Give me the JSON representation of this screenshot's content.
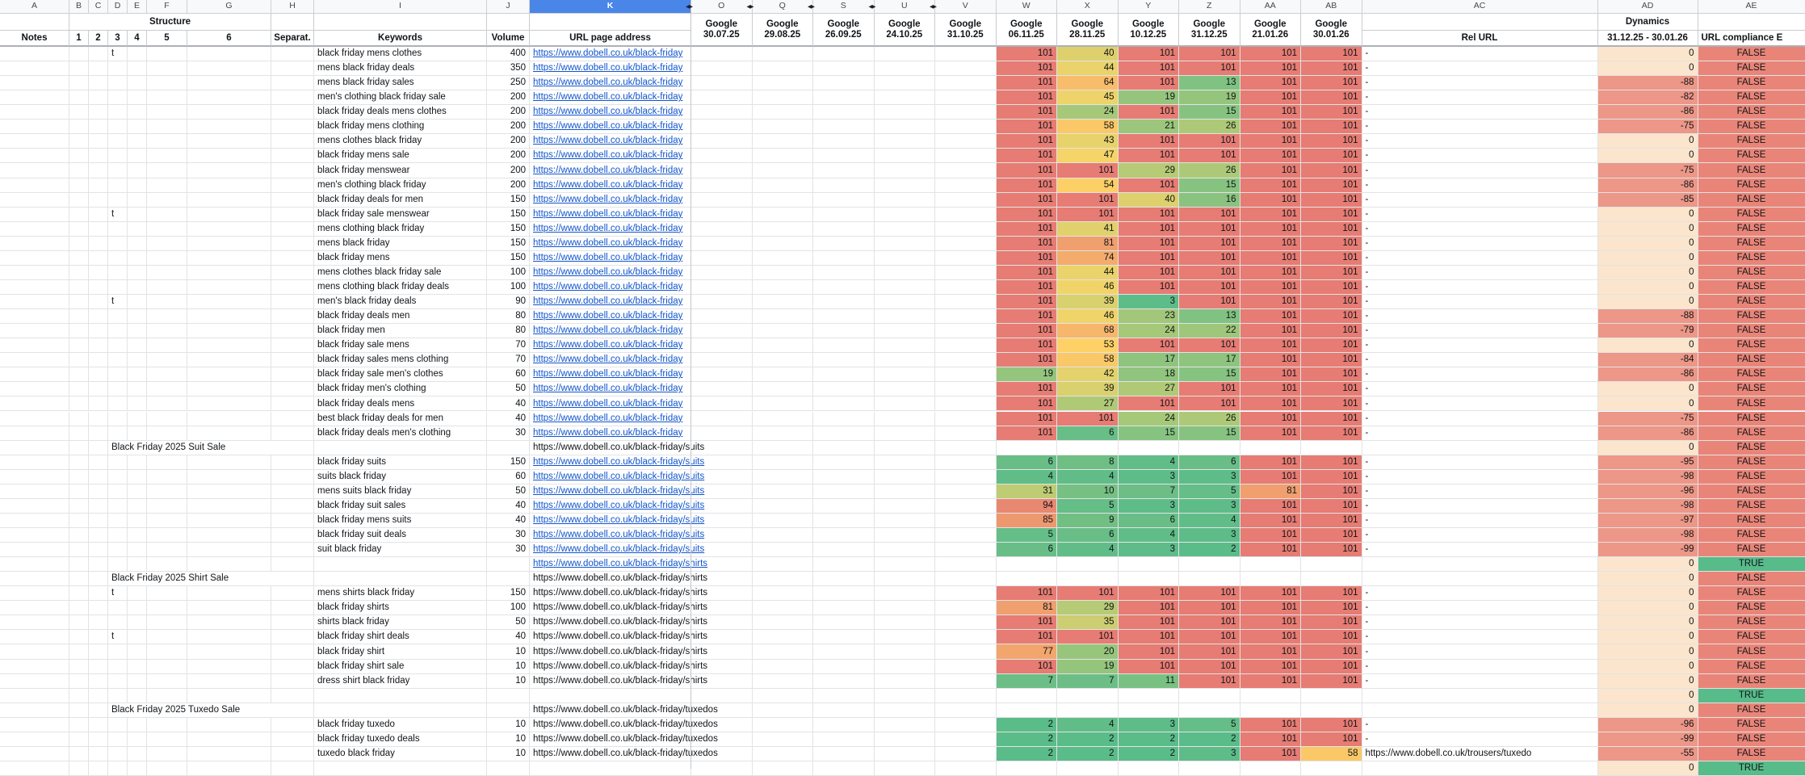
{
  "columns": {
    "letters": [
      "A",
      "B",
      "C",
      "D",
      "E",
      "F",
      "G",
      "H",
      "I",
      "J",
      "K",
      "O",
      "Q",
      "S",
      "U",
      "V",
      "W",
      "X",
      "Y",
      "Z",
      "AA",
      "AB",
      "AC",
      "AD",
      "AE"
    ],
    "selected_letter": "K",
    "hidden_boundary_letters": [
      "O",
      "Q",
      "S",
      "U",
      "V"
    ]
  },
  "headers": {
    "structure_group": "Structure",
    "dynamics_group": "Dynamics",
    "google_label": "Google",
    "notes": "Notes",
    "structure_levels": [
      "1",
      "2",
      "3",
      "4",
      "5",
      "6"
    ],
    "separator": "Separat.",
    "keywords": "Keywords",
    "volume": "Volume",
    "url": "URL page address",
    "rel_url": "Rel URL",
    "dynamics_range": "31.12.25 - 30.01.26",
    "compliance": "URL compliance E",
    "dates": [
      "30.07.25",
      "29.08.25",
      "26.09.25",
      "24.10.25",
      "31.10.25",
      "06.11.25",
      "28.11.25",
      "10.12.25",
      "31.12.25",
      "21.01.26",
      "30.01.26"
    ]
  },
  "colors": {
    "rank_min_green": "#57bb8a",
    "rank_mid_yellow": "#ffd666",
    "rank_max_red": "#e67c73",
    "dyn_zero_bg": "#fce5cd",
    "dyn_negative_bg": "#ec9787",
    "compliance_true_bg": "#57bb8a",
    "compliance_false_bg": "#e98578",
    "link_blue": "#1155cc",
    "selected_column_bg": "#4a86e8"
  },
  "rows": [
    {
      "t": "t",
      "section": "",
      "kw": "black friday mens clothes",
      "vol": "400",
      "url": "https://www.dobell.co.uk/black-friday",
      "link": true,
      "ranks": [
        101,
        40,
        101,
        101,
        101,
        101
      ],
      "rel": "-",
      "dyn": "0",
      "comp": "FALSE"
    },
    {
      "t": "",
      "section": "",
      "kw": "mens black friday deals",
      "vol": "350",
      "url": "https://www.dobell.co.uk/black-friday",
      "link": true,
      "ranks": [
        101,
        44,
        101,
        101,
        101,
        101
      ],
      "rel": "-",
      "dyn": "0",
      "comp": "FALSE"
    },
    {
      "t": "",
      "section": "",
      "kw": "mens black friday sales",
      "vol": "250",
      "url": "https://www.dobell.co.uk/black-friday",
      "link": true,
      "ranks": [
        101,
        64,
        101,
        13,
        101,
        101
      ],
      "rel": "-",
      "dyn": "-88",
      "comp": "FALSE"
    },
    {
      "t": "",
      "section": "",
      "kw": "men's clothing black friday sale",
      "vol": "200",
      "url": "https://www.dobell.co.uk/black-friday",
      "link": true,
      "ranks": [
        101,
        45,
        19,
        19,
        101,
        101
      ],
      "rel": "-",
      "dyn": "-82",
      "comp": "FALSE"
    },
    {
      "t": "",
      "section": "",
      "kw": "black friday deals mens clothes",
      "vol": "200",
      "url": "https://www.dobell.co.uk/black-friday",
      "link": true,
      "ranks": [
        101,
        24,
        101,
        15,
        101,
        101
      ],
      "rel": "-",
      "dyn": "-86",
      "comp": "FALSE"
    },
    {
      "t": "",
      "section": "",
      "kw": "black friday mens clothing",
      "vol": "200",
      "url": "https://www.dobell.co.uk/black-friday",
      "link": true,
      "ranks": [
        101,
        58,
        21,
        26,
        101,
        101
      ],
      "rel": "-",
      "dyn": "-75",
      "comp": "FALSE"
    },
    {
      "t": "",
      "section": "",
      "kw": "mens clothes black friday",
      "vol": "200",
      "url": "https://www.dobell.co.uk/black-friday",
      "link": true,
      "ranks": [
        101,
        43,
        101,
        101,
        101,
        101
      ],
      "rel": "-",
      "dyn": "0",
      "comp": "FALSE"
    },
    {
      "t": "",
      "section": "",
      "kw": "black friday mens sale",
      "vol": "200",
      "url": "https://www.dobell.co.uk/black-friday",
      "link": true,
      "ranks": [
        101,
        47,
        101,
        101,
        101,
        101
      ],
      "rel": "-",
      "dyn": "0",
      "comp": "FALSE"
    },
    {
      "t": "",
      "section": "",
      "kw": "black friday menswear",
      "vol": "200",
      "url": "https://www.dobell.co.uk/black-friday",
      "link": true,
      "ranks": [
        101,
        101,
        29,
        26,
        101,
        101
      ],
      "rel": "-",
      "dyn": "-75",
      "comp": "FALSE"
    },
    {
      "t": "",
      "section": "",
      "kw": "men's clothing black friday",
      "vol": "200",
      "url": "https://www.dobell.co.uk/black-friday",
      "link": true,
      "ranks": [
        101,
        54,
        101,
        15,
        101,
        101
      ],
      "rel": "-",
      "dyn": "-86",
      "comp": "FALSE"
    },
    {
      "t": "",
      "section": "",
      "kw": "black friday deals for men",
      "vol": "150",
      "url": "https://www.dobell.co.uk/black-friday",
      "link": true,
      "ranks": [
        101,
        101,
        40,
        16,
        101,
        101
      ],
      "rel": "-",
      "dyn": "-85",
      "comp": "FALSE"
    },
    {
      "t": "t",
      "section": "",
      "kw": "black friday sale menswear",
      "vol": "150",
      "url": "https://www.dobell.co.uk/black-friday",
      "link": true,
      "ranks": [
        101,
        101,
        101,
        101,
        101,
        101
      ],
      "rel": "-",
      "dyn": "0",
      "comp": "FALSE"
    },
    {
      "t": "",
      "section": "",
      "kw": "mens clothing black friday",
      "vol": "150",
      "url": "https://www.dobell.co.uk/black-friday",
      "link": true,
      "ranks": [
        101,
        41,
        101,
        101,
        101,
        101
      ],
      "rel": "-",
      "dyn": "0",
      "comp": "FALSE"
    },
    {
      "t": "",
      "section": "",
      "kw": "mens black friday",
      "vol": "150",
      "url": "https://www.dobell.co.uk/black-friday",
      "link": true,
      "ranks": [
        101,
        81,
        101,
        101,
        101,
        101
      ],
      "rel": "-",
      "dyn": "0",
      "comp": "FALSE"
    },
    {
      "t": "",
      "section": "",
      "kw": "black friday mens",
      "vol": "150",
      "url": "https://www.dobell.co.uk/black-friday",
      "link": true,
      "ranks": [
        101,
        74,
        101,
        101,
        101,
        101
      ],
      "rel": "-",
      "dyn": "0",
      "comp": "FALSE"
    },
    {
      "t": "",
      "section": "",
      "kw": "mens clothes black friday sale",
      "vol": "100",
      "url": "https://www.dobell.co.uk/black-friday",
      "link": true,
      "ranks": [
        101,
        44,
        101,
        101,
        101,
        101
      ],
      "rel": "-",
      "dyn": "0",
      "comp": "FALSE"
    },
    {
      "t": "",
      "section": "",
      "kw": "mens clothing black friday deals",
      "vol": "100",
      "url": "https://www.dobell.co.uk/black-friday",
      "link": true,
      "ranks": [
        101,
        46,
        101,
        101,
        101,
        101
      ],
      "rel": "-",
      "dyn": "0",
      "comp": "FALSE"
    },
    {
      "t": "t",
      "section": "",
      "kw": "men's black friday deals",
      "vol": "90",
      "url": "https://www.dobell.co.uk/black-friday",
      "link": true,
      "ranks": [
        101,
        39,
        3,
        101,
        101,
        101
      ],
      "rel": "-",
      "dyn": "0",
      "comp": "FALSE"
    },
    {
      "t": "",
      "section": "",
      "kw": "black friday deals men",
      "vol": "80",
      "url": "https://www.dobell.co.uk/black-friday",
      "link": true,
      "ranks": [
        101,
        46,
        23,
        13,
        101,
        101
      ],
      "rel": "-",
      "dyn": "-88",
      "comp": "FALSE"
    },
    {
      "t": "",
      "section": "",
      "kw": "black friday men",
      "vol": "80",
      "url": "https://www.dobell.co.uk/black-friday",
      "link": true,
      "ranks": [
        101,
        68,
        24,
        22,
        101,
        101
      ],
      "rel": "-",
      "dyn": "-79",
      "comp": "FALSE"
    },
    {
      "t": "",
      "section": "",
      "kw": "black friday sale mens",
      "vol": "70",
      "url": "https://www.dobell.co.uk/black-friday",
      "link": true,
      "ranks": [
        101,
        53,
        101,
        101,
        101,
        101
      ],
      "rel": "-",
      "dyn": "0",
      "comp": "FALSE"
    },
    {
      "t": "",
      "section": "",
      "kw": "black friday sales mens clothing",
      "vol": "70",
      "url": "https://www.dobell.co.uk/black-friday",
      "link": true,
      "ranks": [
        101,
        58,
        17,
        17,
        101,
        101
      ],
      "rel": "-",
      "dyn": "-84",
      "comp": "FALSE"
    },
    {
      "t": "",
      "section": "",
      "kw": "black friday sale men's clothes",
      "vol": "60",
      "url": "https://www.dobell.co.uk/black-friday",
      "link": true,
      "ranks": [
        19,
        42,
        18,
        15,
        101,
        101
      ],
      "rel": "-",
      "dyn": "-86",
      "comp": "FALSE"
    },
    {
      "t": "",
      "section": "",
      "kw": "black friday men's clothing",
      "vol": "50",
      "url": "https://www.dobell.co.uk/black-friday",
      "link": true,
      "ranks": [
        101,
        39,
        27,
        101,
        101,
        101
      ],
      "rel": "-",
      "dyn": "0",
      "comp": "FALSE"
    },
    {
      "t": "",
      "section": "",
      "kw": "black friday deals mens",
      "vol": "40",
      "url": "https://www.dobell.co.uk/black-friday",
      "link": true,
      "ranks": [
        101,
        27,
        101,
        101,
        101,
        101
      ],
      "rel": "-",
      "dyn": "0",
      "comp": "FALSE"
    },
    {
      "t": "",
      "section": "",
      "kw": "best black friday deals for men",
      "vol": "40",
      "url": "https://www.dobell.co.uk/black-friday",
      "link": true,
      "ranks": [
        101,
        101,
        24,
        26,
        101,
        101
      ],
      "rel": "-",
      "dyn": "-75",
      "comp": "FALSE"
    },
    {
      "t": "",
      "section": "",
      "kw": "black friday deals men's clothing",
      "vol": "30",
      "url": "https://www.dobell.co.uk/black-friday",
      "link": true,
      "ranks": [
        101,
        6,
        15,
        15,
        101,
        101
      ],
      "rel": "-",
      "dyn": "-86",
      "comp": "FALSE"
    },
    {
      "t": "",
      "section": "Black Friday 2025 Suit Sale",
      "kw": "",
      "vol": "",
      "url": "https://www.dobell.co.uk/black-friday/suits",
      "link": false,
      "ranks": null,
      "rel": "",
      "dyn": "0",
      "comp": "FALSE"
    },
    {
      "t": "",
      "section": "",
      "kw": "black friday suits",
      "vol": "150",
      "url": "https://www.dobell.co.uk/black-friday/suits",
      "link": true,
      "ranks": [
        6,
        8,
        4,
        6,
        101,
        101
      ],
      "rel": "-",
      "dyn": "-95",
      "comp": "FALSE"
    },
    {
      "t": "",
      "section": "",
      "kw": "suits black friday",
      "vol": "60",
      "url": "https://www.dobell.co.uk/black-friday/suits",
      "link": true,
      "ranks": [
        4,
        4,
        3,
        3,
        101,
        101
      ],
      "rel": "-",
      "dyn": "-98",
      "comp": "FALSE"
    },
    {
      "t": "",
      "section": "",
      "kw": "mens suits black friday",
      "vol": "50",
      "url": "https://www.dobell.co.uk/black-friday/suits",
      "link": true,
      "ranks": [
        31,
        10,
        7,
        5,
        81,
        101
      ],
      "rel": "-",
      "dyn": "-96",
      "comp": "FALSE"
    },
    {
      "t": "",
      "section": "",
      "kw": "black friday suit sales",
      "vol": "40",
      "url": "https://www.dobell.co.uk/black-friday/suits",
      "link": true,
      "ranks": [
        94,
        5,
        3,
        3,
        101,
        101
      ],
      "rel": "-",
      "dyn": "-98",
      "comp": "FALSE"
    },
    {
      "t": "",
      "section": "",
      "kw": "black friday mens suits",
      "vol": "40",
      "url": "https://www.dobell.co.uk/black-friday/suits",
      "link": true,
      "ranks": [
        85,
        9,
        6,
        4,
        101,
        101
      ],
      "rel": "-",
      "dyn": "-97",
      "comp": "FALSE"
    },
    {
      "t": "",
      "section": "",
      "kw": "black friday suit deals",
      "vol": "30",
      "url": "https://www.dobell.co.uk/black-friday/suits",
      "link": true,
      "ranks": [
        5,
        6,
        4,
        3,
        101,
        101
      ],
      "rel": "-",
      "dyn": "-98",
      "comp": "FALSE"
    },
    {
      "t": "",
      "section": "",
      "kw": "suit black friday",
      "vol": "30",
      "url": "https://www.dobell.co.uk/black-friday/suits",
      "link": true,
      "ranks": [
        6,
        4,
        3,
        2,
        101,
        101
      ],
      "rel": "-",
      "dyn": "-99",
      "comp": "FALSE"
    },
    {
      "t": "",
      "section": "",
      "kw": "",
      "vol": "",
      "url": "https://www.dobell.co.uk/black-friday/shirts",
      "link": true,
      "ranks": null,
      "rel": "",
      "dyn": "0",
      "comp": "TRUE"
    },
    {
      "t": "",
      "section": "Black Friday 2025 Shirt Sale",
      "kw": "",
      "vol": "",
      "url": "https://www.dobell.co.uk/black-friday/shirts",
      "link": false,
      "ranks": null,
      "rel": "",
      "dyn": "0",
      "comp": "FALSE"
    },
    {
      "t": "t",
      "section": "",
      "kw": "mens shirts black friday",
      "vol": "150",
      "url": "https://www.dobell.co.uk/black-friday/shirts",
      "link": false,
      "ranks": [
        101,
        101,
        101,
        101,
        101,
        101
      ],
      "rel": "-",
      "dyn": "0",
      "comp": "FALSE"
    },
    {
      "t": "",
      "section": "",
      "kw": "black friday shirts",
      "vol": "100",
      "url": "https://www.dobell.co.uk/black-friday/shirts",
      "link": false,
      "ranks": [
        81,
        29,
        101,
        101,
        101,
        101
      ],
      "rel": "-",
      "dyn": "0",
      "comp": "FALSE"
    },
    {
      "t": "",
      "section": "",
      "kw": "shirts black friday",
      "vol": "50",
      "url": "https://www.dobell.co.uk/black-friday/shirts",
      "link": false,
      "ranks": [
        101,
        35,
        101,
        101,
        101,
        101
      ],
      "rel": "-",
      "dyn": "0",
      "comp": "FALSE"
    },
    {
      "t": "t",
      "section": "",
      "kw": "black friday shirt deals",
      "vol": "40",
      "url": "https://www.dobell.co.uk/black-friday/shirts",
      "link": false,
      "ranks": [
        101,
        101,
        101,
        101,
        101,
        101
      ],
      "rel": "-",
      "dyn": "0",
      "comp": "FALSE"
    },
    {
      "t": "",
      "section": "",
      "kw": "black friday shirt",
      "vol": "10",
      "url": "https://www.dobell.co.uk/black-friday/shirts",
      "link": false,
      "ranks": [
        77,
        20,
        101,
        101,
        101,
        101
      ],
      "rel": "-",
      "dyn": "0",
      "comp": "FALSE"
    },
    {
      "t": "",
      "section": "",
      "kw": "black friday shirt sale",
      "vol": "10",
      "url": "https://www.dobell.co.uk/black-friday/shirts",
      "link": false,
      "ranks": [
        101,
        19,
        101,
        101,
        101,
        101
      ],
      "rel": "-",
      "dyn": "0",
      "comp": "FALSE"
    },
    {
      "t": "",
      "section": "",
      "kw": "dress shirt black friday",
      "vol": "10",
      "url": "https://www.dobell.co.uk/black-friday/shirts",
      "link": false,
      "ranks": [
        7,
        7,
        11,
        101,
        101,
        101
      ],
      "rel": "-",
      "dyn": "0",
      "comp": "FALSE"
    },
    {
      "t": "",
      "section": "",
      "kw": "",
      "vol": "",
      "url": "",
      "link": false,
      "ranks": null,
      "rel": "",
      "dyn": "0",
      "comp": "TRUE"
    },
    {
      "t": "",
      "section": "Black Friday 2025 Tuxedo Sale",
      "kw": "",
      "vol": "",
      "url": "https://www.dobell.co.uk/black-friday/tuxedos",
      "link": false,
      "ranks": null,
      "rel": "",
      "dyn": "0",
      "comp": "FALSE"
    },
    {
      "t": "",
      "section": "",
      "kw": "black friday tuxedo",
      "vol": "10",
      "url": "https://www.dobell.co.uk/black-friday/tuxedos",
      "link": false,
      "ranks": [
        2,
        4,
        3,
        5,
        101,
        101
      ],
      "rel": "-",
      "dyn": "-96",
      "comp": "FALSE"
    },
    {
      "t": "",
      "section": "",
      "kw": "black friday tuxedo deals",
      "vol": "10",
      "url": "https://www.dobell.co.uk/black-friday/tuxedos",
      "link": false,
      "ranks": [
        2,
        2,
        2,
        2,
        101,
        101
      ],
      "rel": "-",
      "dyn": "-99",
      "comp": "FALSE"
    },
    {
      "t": "",
      "section": "",
      "kw": "tuxedo black friday",
      "vol": "10",
      "url": "https://www.dobell.co.uk/black-friday/tuxedos",
      "link": false,
      "ranks": [
        2,
        2,
        2,
        3,
        101,
        58
      ],
      "rel": "https://www.dobell.co.uk/trousers/tuxedo",
      "dyn": "-55",
      "comp": "FALSE"
    },
    {
      "t": "",
      "section": "",
      "kw": "",
      "vol": "",
      "url": "",
      "link": false,
      "ranks": null,
      "rel": "",
      "dyn": "0",
      "comp": "TRUE"
    }
  ]
}
